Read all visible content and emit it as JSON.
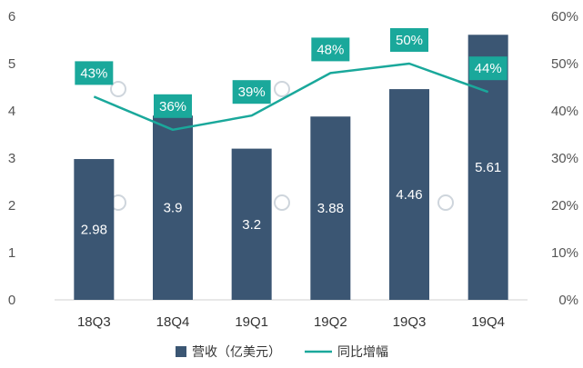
{
  "chart_data": {
    "type": "bar",
    "categories": [
      "18Q3",
      "18Q4",
      "19Q1",
      "19Q2",
      "19Q3",
      "19Q4"
    ],
    "series": [
      {
        "name": "营收（亿美元）",
        "kind": "bar",
        "axis": "left",
        "values": [
          2.98,
          3.9,
          3.2,
          3.88,
          4.46,
          5.61
        ],
        "labels": [
          "2.98",
          "3.9",
          "3.2",
          "3.88",
          "4.46",
          "5.61"
        ]
      },
      {
        "name": "同比增幅",
        "kind": "line",
        "axis": "right",
        "values": [
          43,
          36,
          39,
          48,
          50,
          44
        ],
        "labels": [
          "43%",
          "36%",
          "39%",
          "48%",
          "50%",
          "44%"
        ]
      }
    ],
    "ylim": [
      0,
      6
    ],
    "y_ticks": [
      "0",
      "1",
      "2",
      "3",
      "4",
      "5",
      "6"
    ],
    "y2lim": [
      0,
      60
    ],
    "y2_ticks": [
      "0%",
      "10%",
      "20%",
      "30%",
      "40%",
      "50%",
      "60%"
    ],
    "legend_position": "bottom",
    "grid": false,
    "colors": {
      "bar": "#3b5673",
      "line": "#1aa89b",
      "label_bg": "#1aa89b"
    }
  }
}
